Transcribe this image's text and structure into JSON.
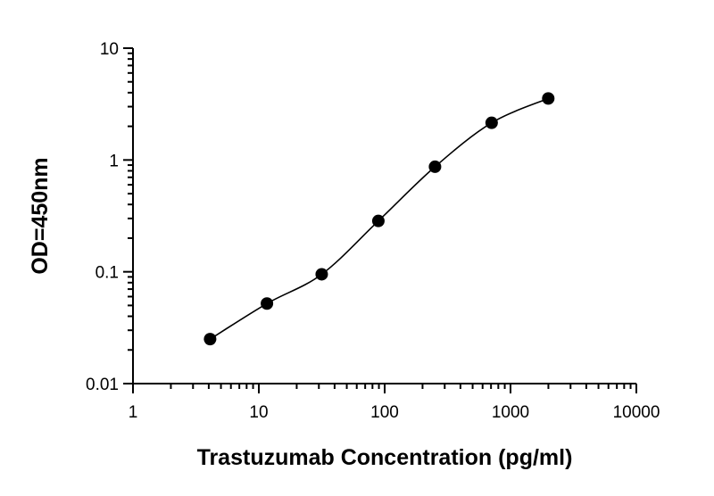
{
  "chart_data": {
    "type": "scatter",
    "title": "",
    "xlabel": "Trastuzumab Concentration (pg/ml)",
    "ylabel": "OD=450nm",
    "xscale": "log",
    "yscale": "log",
    "xlim": [
      1,
      10000
    ],
    "ylim": [
      0.01,
      10
    ],
    "x_ticks": [
      1,
      10,
      100,
      1000,
      10000
    ],
    "x_tick_labels": [
      "1",
      "10",
      "100",
      "1000",
      "10000"
    ],
    "y_ticks": [
      0.01,
      0.1,
      1,
      10
    ],
    "y_tick_labels": [
      "0.01",
      "0.1",
      "1",
      "10"
    ],
    "grid": false,
    "legend": "none",
    "series": [
      {
        "x": [
          4.1,
          11.6,
          31.6,
          89.1,
          251.2,
          707.9,
          1995.3
        ],
        "y": [
          0.025,
          0.052,
          0.095,
          0.285,
          0.87,
          2.15,
          3.55
        ],
        "marker": "circle",
        "fit": "sigmoidal"
      }
    ],
    "colors": {
      "points": "#000000",
      "curve": "#000000",
      "axes": "#000000"
    }
  }
}
